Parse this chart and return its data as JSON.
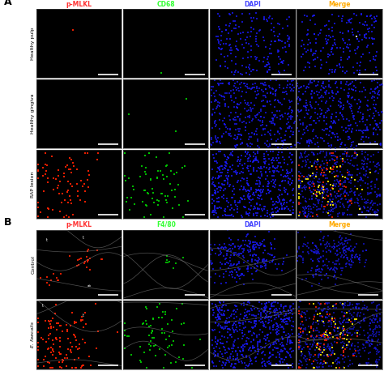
{
  "panel_A_label": "A",
  "panel_B_label": "B",
  "col_headers_A": [
    "p-MLKL",
    "CD68",
    "DAPI",
    "Merge"
  ],
  "col_headers_B": [
    "p-MLKL",
    "F4/80",
    "DAPI",
    "Merge"
  ],
  "col_header_colors": [
    "#ff3333",
    "#33ff33",
    "#4444ff",
    "#ffaa00"
  ],
  "row_labels_A": [
    "Healthy pulp",
    "Healthy gingiva",
    "RAP lesion"
  ],
  "row_labels_B": [
    "Control",
    "E. faecalis"
  ],
  "background_color": "#000000",
  "figure_bg": "#ffffff",
  "row_label_color": "#000000",
  "italic_label": "E. faecalis",
  "marker_size": 1.5,
  "dapi_color": "#1a1aff",
  "red_color": "#ff2200",
  "green_color": "#00cc00",
  "yellow_color": "#ffee00",
  "tissue_color": "#888888"
}
